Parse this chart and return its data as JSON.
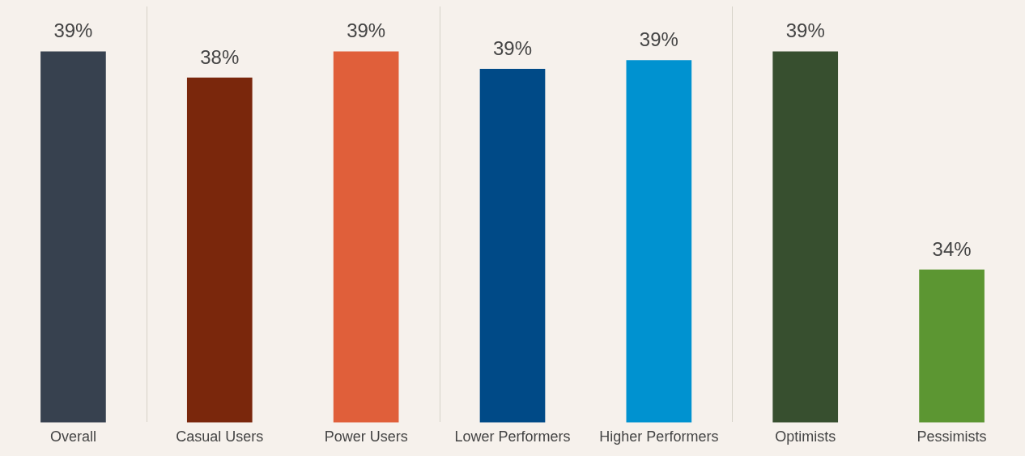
{
  "chart_data": {
    "type": "bar",
    "categories": [
      "Overall",
      "Casual Users",
      "Power Users",
      "Lower Performers",
      "Higher Performers",
      "Optimists",
      "Pessimists"
    ],
    "values": [
      39.0,
      38.4,
      39.0,
      38.6,
      38.8,
      39.0,
      34.0
    ],
    "value_labels": [
      "39%",
      "38%",
      "39%",
      "39%",
      "39%",
      "39%",
      "34%"
    ],
    "colors": [
      "#37414f",
      "#7a270c",
      "#e05f3a",
      "#004a87",
      "#0092d0",
      "#374f2f",
      "#5c9632"
    ],
    "ylim": [
      30.5,
      40
    ],
    "tick_labels": "x",
    "grid": false,
    "legend": false
  }
}
